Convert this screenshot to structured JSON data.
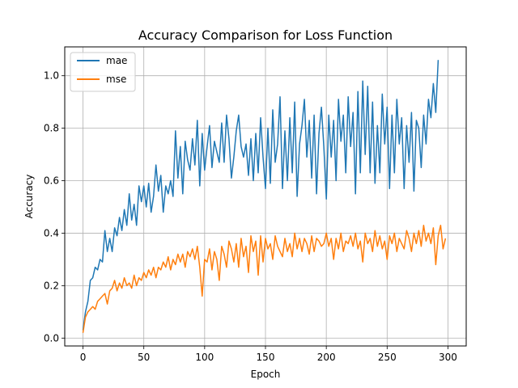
{
  "chart_data": {
    "type": "line",
    "title": "Accuracy Comparison for Loss Function",
    "xlabel": "Epoch",
    "ylabel": "Accuracy",
    "xlim": [
      -15,
      315
    ],
    "ylim": [
      -0.03,
      1.11
    ],
    "xticks": [
      0,
      50,
      100,
      150,
      200,
      250,
      300
    ],
    "yticks": [
      0.0,
      0.2,
      0.4,
      0.6,
      0.8,
      1.0
    ],
    "xtick_labels": [
      "0",
      "50",
      "100",
      "150",
      "200",
      "250",
      "300"
    ],
    "ytick_labels": [
      "0.0",
      "0.2",
      "0.4",
      "0.6",
      "0.8",
      "1.0"
    ],
    "grid": true,
    "legend_position": "top-left",
    "series": [
      {
        "name": "mae",
        "color": "#1f77b4",
        "x": [
          0,
          2,
          4,
          6,
          8,
          10,
          12,
          14,
          16,
          18,
          20,
          22,
          24,
          26,
          28,
          30,
          32,
          34,
          36,
          38,
          40,
          42,
          44,
          46,
          48,
          50,
          52,
          54,
          56,
          58,
          60,
          62,
          64,
          66,
          68,
          70,
          72,
          74,
          76,
          78,
          80,
          82,
          84,
          86,
          88,
          90,
          92,
          94,
          96,
          98,
          100,
          102,
          104,
          106,
          108,
          110,
          112,
          114,
          116,
          118,
          120,
          122,
          124,
          126,
          128,
          130,
          132,
          134,
          136,
          138,
          140,
          142,
          144,
          146,
          148,
          150,
          152,
          154,
          156,
          158,
          160,
          162,
          164,
          166,
          168,
          170,
          172,
          174,
          176,
          178,
          180,
          182,
          184,
          186,
          188,
          190,
          192,
          194,
          196,
          198,
          200,
          202,
          204,
          206,
          208,
          210,
          212,
          214,
          216,
          218,
          220,
          222,
          224,
          226,
          228,
          230,
          232,
          234,
          236,
          238,
          240,
          242,
          244,
          246,
          248,
          250,
          252,
          254,
          256,
          258,
          260,
          262,
          264,
          266,
          268,
          270,
          272,
          274,
          276,
          278,
          280,
          282,
          284,
          286,
          288,
          290,
          292
        ],
        "y": [
          0.03,
          0.1,
          0.14,
          0.22,
          0.23,
          0.27,
          0.26,
          0.3,
          0.29,
          0.41,
          0.33,
          0.38,
          0.33,
          0.42,
          0.39,
          0.46,
          0.41,
          0.49,
          0.43,
          0.55,
          0.45,
          0.51,
          0.43,
          0.58,
          0.52,
          0.58,
          0.5,
          0.59,
          0.48,
          0.54,
          0.66,
          0.56,
          0.62,
          0.48,
          0.58,
          0.55,
          0.6,
          0.54,
          0.79,
          0.61,
          0.73,
          0.55,
          0.75,
          0.68,
          0.64,
          0.76,
          0.66,
          0.83,
          0.58,
          0.78,
          0.64,
          0.73,
          0.81,
          0.65,
          0.75,
          0.71,
          0.67,
          0.82,
          0.67,
          0.85,
          0.76,
          0.61,
          0.69,
          0.79,
          0.85,
          0.73,
          0.69,
          0.74,
          0.62,
          0.76,
          0.6,
          0.78,
          0.63,
          0.84,
          0.69,
          0.57,
          0.8,
          0.59,
          0.87,
          0.67,
          0.74,
          0.92,
          0.57,
          0.79,
          0.6,
          0.84,
          0.63,
          0.9,
          0.54,
          0.74,
          0.81,
          0.91,
          0.69,
          0.83,
          0.61,
          0.85,
          0.55,
          0.78,
          0.88,
          0.73,
          0.53,
          0.85,
          0.69,
          0.83,
          0.6,
          0.91,
          0.75,
          0.85,
          0.63,
          0.92,
          0.73,
          0.86,
          0.55,
          0.94,
          0.63,
          0.98,
          0.7,
          0.96,
          0.63,
          0.9,
          0.59,
          0.81,
          0.63,
          0.93,
          0.74,
          0.88,
          0.57,
          0.85,
          0.63,
          0.91,
          0.74,
          0.84,
          0.57,
          0.81,
          0.67,
          0.86,
          0.56,
          0.83,
          0.8,
          0.65,
          0.85,
          0.74,
          0.91,
          0.84,
          0.97,
          0.86,
          1.06
        ]
      },
      {
        "name": "mse",
        "color": "#ff7f0e",
        "x": [
          0,
          2,
          4,
          6,
          8,
          10,
          12,
          14,
          16,
          18,
          20,
          22,
          24,
          26,
          28,
          30,
          32,
          34,
          36,
          38,
          40,
          42,
          44,
          46,
          48,
          50,
          52,
          54,
          56,
          58,
          60,
          62,
          64,
          66,
          68,
          70,
          72,
          74,
          76,
          78,
          80,
          82,
          84,
          86,
          88,
          90,
          92,
          94,
          96,
          98,
          100,
          102,
          104,
          106,
          108,
          110,
          112,
          114,
          116,
          118,
          120,
          122,
          124,
          126,
          128,
          130,
          132,
          134,
          136,
          138,
          140,
          142,
          144,
          146,
          148,
          150,
          152,
          154,
          156,
          158,
          160,
          162,
          164,
          166,
          168,
          170,
          172,
          174,
          176,
          178,
          180,
          182,
          184,
          186,
          188,
          190,
          192,
          194,
          196,
          198,
          200,
          202,
          204,
          206,
          208,
          210,
          212,
          214,
          216,
          218,
          220,
          222,
          224,
          226,
          228,
          230,
          232,
          234,
          236,
          238,
          240,
          242,
          244,
          246,
          248,
          250,
          252,
          254,
          256,
          258,
          260,
          262,
          264,
          266,
          268,
          270,
          272,
          274,
          276,
          278,
          280,
          282,
          284,
          286,
          288,
          290,
          292,
          294,
          296,
          298
        ],
        "y": [
          0.02,
          0.08,
          0.1,
          0.11,
          0.12,
          0.11,
          0.14,
          0.15,
          0.16,
          0.17,
          0.13,
          0.18,
          0.19,
          0.22,
          0.18,
          0.21,
          0.19,
          0.23,
          0.2,
          0.21,
          0.19,
          0.24,
          0.2,
          0.23,
          0.22,
          0.25,
          0.23,
          0.26,
          0.24,
          0.27,
          0.23,
          0.27,
          0.26,
          0.29,
          0.27,
          0.31,
          0.26,
          0.3,
          0.28,
          0.32,
          0.29,
          0.32,
          0.27,
          0.33,
          0.31,
          0.34,
          0.3,
          0.35,
          0.27,
          0.16,
          0.3,
          0.29,
          0.34,
          0.26,
          0.33,
          0.3,
          0.22,
          0.35,
          0.32,
          0.27,
          0.37,
          0.34,
          0.29,
          0.36,
          0.27,
          0.38,
          0.31,
          0.35,
          0.25,
          0.39,
          0.33,
          0.37,
          0.24,
          0.39,
          0.29,
          0.38,
          0.34,
          0.36,
          0.3,
          0.39,
          0.35,
          0.33,
          0.31,
          0.38,
          0.33,
          0.36,
          0.31,
          0.4,
          0.34,
          0.38,
          0.33,
          0.38,
          0.36,
          0.32,
          0.39,
          0.33,
          0.38,
          0.37,
          0.35,
          0.36,
          0.4,
          0.35,
          0.38,
          0.3,
          0.38,
          0.34,
          0.4,
          0.33,
          0.37,
          0.36,
          0.39,
          0.35,
          0.4,
          0.34,
          0.37,
          0.29,
          0.4,
          0.36,
          0.38,
          0.33,
          0.41,
          0.35,
          0.39,
          0.34,
          0.37,
          0.3,
          0.39,
          0.36,
          0.4,
          0.33,
          0.38,
          0.36,
          0.34,
          0.41,
          0.38,
          0.33,
          0.4,
          0.36,
          0.41,
          0.35,
          0.43,
          0.37,
          0.4,
          0.36,
          0.42,
          0.28,
          0.39,
          0.43,
          0.34,
          0.38
        ]
      }
    ]
  }
}
